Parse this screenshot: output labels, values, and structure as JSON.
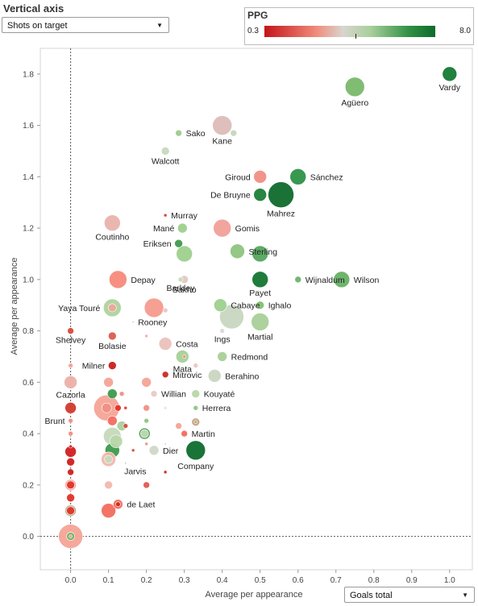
{
  "controls": {
    "vertical_axis_title": "Vertical axis",
    "vertical_axis_selected": "Shots on target",
    "horizontal_axis_selected": "Goals total"
  },
  "legend": {
    "title": "PPG",
    "min_label": "0.3",
    "max_label": "8.0",
    "min": 0.3,
    "max": 8.0
  },
  "chart_data": {
    "type": "scatter",
    "title": "",
    "xlabel": "Average per appearance",
    "ylabel": "Average per appearance",
    "xlim": [
      -0.08,
      1.06
    ],
    "ylim": [
      -0.13,
      1.9
    ],
    "x_ticks": [
      0.0,
      0.1,
      0.2,
      0.3,
      0.4,
      0.5,
      0.6,
      0.7,
      0.8,
      0.9,
      1.0
    ],
    "x_tick_labels": [
      "0.0",
      "0.1",
      "0.2",
      "0.3",
      "0.4",
      "0.5",
      "0.6",
      "0.7",
      "0.8",
      "0.9",
      "1.0"
    ],
    "y_ticks": [
      0.0,
      0.2,
      0.4,
      0.6,
      0.8,
      1.0,
      1.2,
      1.4,
      1.6,
      1.8
    ],
    "y_tick_labels": [
      "0.0",
      "0.2",
      "0.4",
      "0.6",
      "0.8",
      "1.0",
      "1.2",
      "1.4",
      "1.6",
      "1.8"
    ],
    "size_encoding": "size",
    "color_encoding": "PPG",
    "points": [
      {
        "label": "Vardy",
        "x": 1.0,
        "y": 1.8,
        "size": 9,
        "color": "#157a34"
      },
      {
        "label": "Agüero",
        "x": 0.75,
        "y": 1.75,
        "size": 12,
        "color": "#7ab86b"
      },
      {
        "label": "Kane",
        "x": 0.4,
        "y": 1.6,
        "size": 12,
        "color": "#dcbcb7"
      },
      {
        "label": "Sako",
        "x": 0.285,
        "y": 1.57,
        "size": 4,
        "color": "#9ecb8c"
      },
      {
        "label": "",
        "x": 0.43,
        "y": 1.57,
        "size": 4,
        "color": "#c4d7b8"
      },
      {
        "label": "Walcott",
        "x": 0.25,
        "y": 1.5,
        "size": 5,
        "color": "#c8d8c0"
      },
      {
        "label": "Giroud",
        "x": 0.5,
        "y": 1.4,
        "size": 8,
        "color": "#f08f85"
      },
      {
        "label": "Sánchez",
        "x": 0.6,
        "y": 1.4,
        "size": 10,
        "color": "#2e9246"
      },
      {
        "label": "De Bruyne",
        "x": 0.5,
        "y": 1.33,
        "size": 8,
        "color": "#1e7e37"
      },
      {
        "label": "Mahrez",
        "x": 0.555,
        "y": 1.33,
        "size": 16,
        "color": "#0f6a2c"
      },
      {
        "label": "Murray",
        "x": 0.25,
        "y": 1.25,
        "size": 2,
        "color": "#d03b2f"
      },
      {
        "label": "Coutinho",
        "x": 0.11,
        "y": 1.22,
        "size": 10,
        "color": "#e9b3ab"
      },
      {
        "label": "Mané",
        "x": 0.295,
        "y": 1.2,
        "size": 6,
        "color": "#9ed08c"
      },
      {
        "label": "Gomis",
        "x": 0.4,
        "y": 1.2,
        "size": 11,
        "color": "#f0a098"
      },
      {
        "label": "Eriksen",
        "x": 0.285,
        "y": 1.14,
        "size": 5,
        "color": "#3f9a4e"
      },
      {
        "label": "",
        "x": 0.3,
        "y": 1.1,
        "size": 10,
        "color": "#9ed08c"
      },
      {
        "label": "Sterling",
        "x": 0.44,
        "y": 1.11,
        "size": 9,
        "color": "#8fc47f"
      },
      {
        "label": "",
        "x": 0.5,
        "y": 1.1,
        "size": 10,
        "color": "#54a75d"
      },
      {
        "label": "Barkley",
        "x": 0.29,
        "y": 1.0,
        "size": 3,
        "color": "#c6dcb9"
      },
      {
        "label": "Sakho",
        "x": 0.3,
        "y": 1.0,
        "size": 5,
        "color": "#e5c8c2"
      },
      {
        "label": "Depay",
        "x": 0.125,
        "y": 1.0,
        "size": 11,
        "color": "#f58a7b"
      },
      {
        "label": "Payet",
        "x": 0.5,
        "y": 1.0,
        "size": 10,
        "color": "#137533"
      },
      {
        "label": "Wijnaldum",
        "x": 0.6,
        "y": 1.0,
        "size": 4,
        "color": "#6bb46a"
      },
      {
        "label": "Wilson",
        "x": 0.715,
        "y": 1.0,
        "size": 10,
        "color": "#67b065"
      },
      {
        "label": "Yaya Touré",
        "x": 0.11,
        "y": 0.89,
        "size": 11,
        "color": "#aed39d"
      },
      {
        "label": "",
        "x": 0.11,
        "y": 0.89,
        "size": 5,
        "color": "#f0a59a"
      },
      {
        "label": "",
        "x": 0.22,
        "y": 0.89,
        "size": 12,
        "color": "#f59a8d"
      },
      {
        "label": "",
        "x": 0.25,
        "y": 0.88,
        "size": 3,
        "color": "#e8c7c1"
      },
      {
        "label": "Cabaye",
        "x": 0.395,
        "y": 0.9,
        "size": 8,
        "color": "#9ed08c"
      },
      {
        "label": "Ighalo",
        "x": 0.5,
        "y": 0.9,
        "size": 5,
        "color": "#7fc070"
      },
      {
        "label": "",
        "x": 0.425,
        "y": 0.855,
        "size": 15,
        "color": "#c8d6c0"
      },
      {
        "label": "Martial",
        "x": 0.5,
        "y": 0.835,
        "size": 11,
        "color": "#a9d099"
      },
      {
        "label": "Rooney",
        "x": 0.165,
        "y": 0.835,
        "size": 1,
        "color": "#f08f85"
      },
      {
        "label": "Ings",
        "x": 0.4,
        "y": 0.8,
        "size": 3,
        "color": "#dadada"
      },
      {
        "label": "Shelvey",
        "x": 0.0,
        "y": 0.8,
        "size": 4,
        "color": "#d84a3d"
      },
      {
        "label": "Bolasie",
        "x": 0.11,
        "y": 0.78,
        "size": 5,
        "color": "#e05a4d"
      },
      {
        "label": "",
        "x": 0.2,
        "y": 0.78,
        "size": 2,
        "color": "#f0b0a8"
      },
      {
        "label": "Costa",
        "x": 0.25,
        "y": 0.75,
        "size": 8,
        "color": "#ebc1ba"
      },
      {
        "label": "Mata",
        "x": 0.295,
        "y": 0.7,
        "size": 8,
        "color": "#a8d098"
      },
      {
        "label": "",
        "x": 0.3,
        "y": 0.7,
        "size": 2,
        "color": "#f08f85"
      },
      {
        "label": "Redmond",
        "x": 0.4,
        "y": 0.7,
        "size": 6,
        "color": "#a9d099"
      },
      {
        "label": "Milner",
        "x": 0.11,
        "y": 0.665,
        "size": 5,
        "color": "#cb1f1f"
      },
      {
        "label": "",
        "x": 0.33,
        "y": 0.665,
        "size": 3,
        "color": "#e8c7c1"
      },
      {
        "label": "Mitrovic",
        "x": 0.25,
        "y": 0.63,
        "size": 4,
        "color": "#cc2a22"
      },
      {
        "label": "Berahino",
        "x": 0.38,
        "y": 0.625,
        "size": 8,
        "color": "#c9d6c1"
      },
      {
        "label": "",
        "x": 0.0,
        "y": 0.665,
        "size": 3,
        "color": "#f4a497"
      },
      {
        "label": "Cazorla",
        "x": 0.0,
        "y": 0.6,
        "size": 8,
        "color": "#ecb0a7"
      },
      {
        "label": "",
        "x": 0.1,
        "y": 0.6,
        "size": 6,
        "color": "#f4a497"
      },
      {
        "label": "",
        "x": 0.2,
        "y": 0.6,
        "size": 6,
        "color": "#f4a497"
      },
      {
        "label": "",
        "x": 0.11,
        "y": 0.555,
        "size": 6,
        "color": "#3d9a4c"
      },
      {
        "label": "",
        "x": 0.135,
        "y": 0.555,
        "size": 3,
        "color": "#f08f85"
      },
      {
        "label": "Willian",
        "x": 0.22,
        "y": 0.555,
        "size": 4,
        "color": "#e8cac4"
      },
      {
        "label": "Kouyaté",
        "x": 0.33,
        "y": 0.555,
        "size": 5,
        "color": "#b8d6a9"
      },
      {
        "label": "",
        "x": 0.0,
        "y": 0.5,
        "size": 7,
        "color": "#d2392d"
      },
      {
        "label": "",
        "x": 0.095,
        "y": 0.5,
        "size": 16,
        "color": "#f4a497"
      },
      {
        "label": "",
        "x": 0.095,
        "y": 0.5,
        "size": 6,
        "color": "#f08f85"
      },
      {
        "label": "",
        "x": 0.125,
        "y": 0.5,
        "size": 4,
        "color": "#e3322a"
      },
      {
        "label": "",
        "x": 0.145,
        "y": 0.5,
        "size": 2,
        "color": "#e3322a"
      },
      {
        "label": "",
        "x": 0.2,
        "y": 0.5,
        "size": 4,
        "color": "#f08f85"
      },
      {
        "label": "",
        "x": 0.25,
        "y": 0.5,
        "size": 2,
        "color": "#f4e1dd"
      },
      {
        "label": "Herrera",
        "x": 0.33,
        "y": 0.5,
        "size": 3,
        "color": "#8cc67d"
      },
      {
        "label": "Brunt",
        "x": 0.0,
        "y": 0.45,
        "size": 3,
        "color": "#f08f85"
      },
      {
        "label": "",
        "x": 0.11,
        "y": 0.45,
        "size": 6,
        "color": "#f26d5e"
      },
      {
        "label": "",
        "x": 0.135,
        "y": 0.43,
        "size": 6,
        "color": "#a9d099"
      },
      {
        "label": "",
        "x": 0.145,
        "y": 0.43,
        "size": 3,
        "color": "#d84a3d"
      },
      {
        "label": "",
        "x": 0.2,
        "y": 0.45,
        "size": 3,
        "color": "#8cc67d"
      },
      {
        "label": "",
        "x": 0.285,
        "y": 0.43,
        "size": 4,
        "color": "#f4a497"
      },
      {
        "label": "",
        "x": 0.33,
        "y": 0.445,
        "size": 5,
        "color": "#cf9f85"
      },
      {
        "label": "",
        "x": 0.33,
        "y": 0.445,
        "size": 2,
        "color": "#8cc67d"
      },
      {
        "label": "",
        "x": 0.0,
        "y": 0.4,
        "size": 3,
        "color": "#f08f85"
      },
      {
        "label": "",
        "x": 0.11,
        "y": 0.39,
        "size": 11,
        "color": "#c6d9bb"
      },
      {
        "label": "",
        "x": 0.12,
        "y": 0.37,
        "size": 8,
        "color": "#b9d7aa"
      },
      {
        "label": "",
        "x": 0.195,
        "y": 0.4,
        "size": 7,
        "color": "#449f50"
      },
      {
        "label": "",
        "x": 0.195,
        "y": 0.4,
        "size": 5,
        "color": "#c2d8b6"
      },
      {
        "label": "Martin",
        "x": 0.3,
        "y": 0.4,
        "size": 4,
        "color": "#f26d5e"
      },
      {
        "label": "",
        "x": 0.0,
        "y": 0.35,
        "size": 2,
        "color": "#cc2a22"
      },
      {
        "label": "",
        "x": 0.2,
        "y": 0.36,
        "size": 2,
        "color": "#f08f85"
      },
      {
        "label": "",
        "x": 0.0,
        "y": 0.33,
        "size": 7,
        "color": "#d21f1f"
      },
      {
        "label": "",
        "x": 0.11,
        "y": 0.335,
        "size": 9,
        "color": "#3d9a4c"
      },
      {
        "label": "",
        "x": 0.165,
        "y": 0.335,
        "size": 2,
        "color": "#d84a3d"
      },
      {
        "label": "Dier",
        "x": 0.22,
        "y": 0.335,
        "size": 6,
        "color": "#cfd8c9"
      },
      {
        "label": "",
        "x": 0.25,
        "y": 0.36,
        "size": 1,
        "color": "#aaaaaa"
      },
      {
        "label": "Company",
        "x": 0.33,
        "y": 0.335,
        "size": 12,
        "color": "#0e6b2c"
      },
      {
        "label": "",
        "x": 0.0,
        "y": 0.29,
        "size": 5,
        "color": "#d21f1f"
      },
      {
        "label": "",
        "x": 0.1,
        "y": 0.3,
        "size": 9,
        "color": "#f4b6ad"
      },
      {
        "label": "",
        "x": 0.1,
        "y": 0.3,
        "size": 5,
        "color": "#c6d9bb"
      },
      {
        "label": "Jarvis",
        "x": 0.145,
        "y": 0.285,
        "size": 1,
        "color": "#aaaaaa"
      },
      {
        "label": "",
        "x": 0.25,
        "y": 0.25,
        "size": 2,
        "color": "#cc2a22"
      },
      {
        "label": "",
        "x": 0.0,
        "y": 0.25,
        "size": 4,
        "color": "#d21f1f"
      },
      {
        "label": "",
        "x": 0.0,
        "y": 0.2,
        "size": 7,
        "color": "#f4a497"
      },
      {
        "label": "",
        "x": 0.0,
        "y": 0.2,
        "size": 5,
        "color": "#e3322a"
      },
      {
        "label": "",
        "x": 0.1,
        "y": 0.2,
        "size": 5,
        "color": "#f4b6ad"
      },
      {
        "label": "",
        "x": 0.2,
        "y": 0.2,
        "size": 4,
        "color": "#e05a4d"
      },
      {
        "label": "",
        "x": 0.0,
        "y": 0.15,
        "size": 5,
        "color": "#e3322a"
      },
      {
        "label": "de Laet",
        "x": 0.125,
        "y": 0.125,
        "size": 6,
        "color": "#f26d5e"
      },
      {
        "label": "",
        "x": 0.125,
        "y": 0.125,
        "size": 3,
        "color": "#cc2a22"
      },
      {
        "label": "",
        "x": 0.1,
        "y": 0.1,
        "size": 9,
        "color": "#f26d5e"
      },
      {
        "label": "",
        "x": 0.0,
        "y": 0.1,
        "size": 7,
        "color": "#b6a67d"
      },
      {
        "label": "",
        "x": 0.0,
        "y": 0.1,
        "size": 5,
        "color": "#e3322a"
      },
      {
        "label": "",
        "x": 0.0,
        "y": 0.0,
        "size": 15,
        "color": "#f4a497"
      },
      {
        "label": "",
        "x": 0.0,
        "y": 0.0,
        "size": 5,
        "color": "#6bb46a"
      },
      {
        "label": "",
        "x": 0.0,
        "y": 0.0,
        "size": 2,
        "color": "#f4a497"
      }
    ]
  }
}
